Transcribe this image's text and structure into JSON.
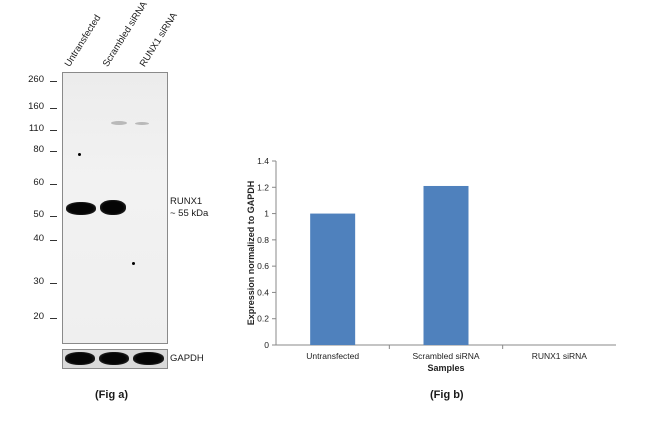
{
  "blot": {
    "lanes": [
      "Untransfected",
      "Scrambled siRNA",
      "RUNX1 siRNA"
    ],
    "mw_markers": [
      "260",
      "160",
      "110",
      "80",
      "60",
      "50",
      "40",
      "30",
      "20"
    ],
    "band_label_line1": "RUNX1",
    "band_label_line2": "~ 55 kDa",
    "loading_label": "GAPDH",
    "caption": "(Fig a)"
  },
  "chart_caption": "(Fig b)",
  "chart_data": {
    "type": "bar",
    "categories": [
      "Untransfected",
      "Scrambled siRNA",
      "RUNX1 siRNA"
    ],
    "values": [
      1.0,
      1.21,
      0.0
    ],
    "xlabel": "Samples",
    "ylabel": "Expression  normalized to GAPDH",
    "ylim": [
      0,
      1.4
    ],
    "yticks": [
      "0",
      "0.2",
      "0.4",
      "0.6",
      "0.8",
      "1",
      "1.2",
      "1.4"
    ],
    "bar_color": "#4f81bd",
    "grid": false,
    "legend": "none"
  }
}
